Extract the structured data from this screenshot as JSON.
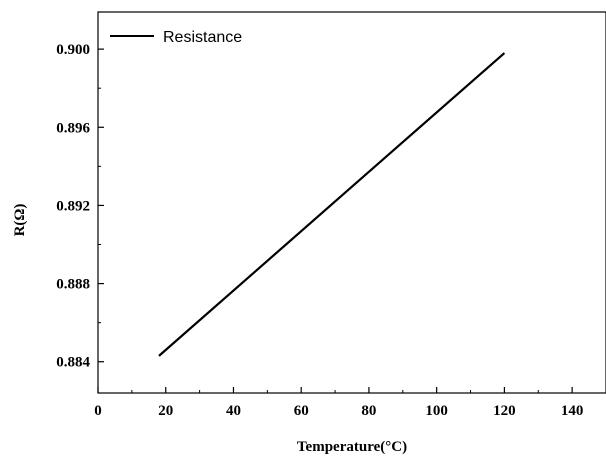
{
  "chart_data": {
    "type": "line",
    "title": "",
    "xlabel": "Temperature(°C)",
    "ylabel": "R(Ω)",
    "xlim": [
      0,
      150
    ],
    "ylim": [
      0.8824,
      0.9019
    ],
    "x_ticks": [
      0,
      20,
      40,
      60,
      80,
      100,
      120,
      140
    ],
    "x_tick_labels": [
      "0",
      "20",
      "40",
      "60",
      "80",
      "100",
      "120",
      "140"
    ],
    "y_ticks": [
      0.884,
      0.888,
      0.892,
      0.896,
      0.9
    ],
    "y_tick_labels": [
      "0.884",
      "0.888",
      "0.892",
      "0.896",
      "0.900"
    ],
    "grid": false,
    "legend_position": "top-left",
    "series": [
      {
        "name": "Resistance",
        "color": "#000000",
        "x": [
          18,
          120
        ],
        "y": [
          0.8843,
          0.8998
        ]
      }
    ]
  }
}
